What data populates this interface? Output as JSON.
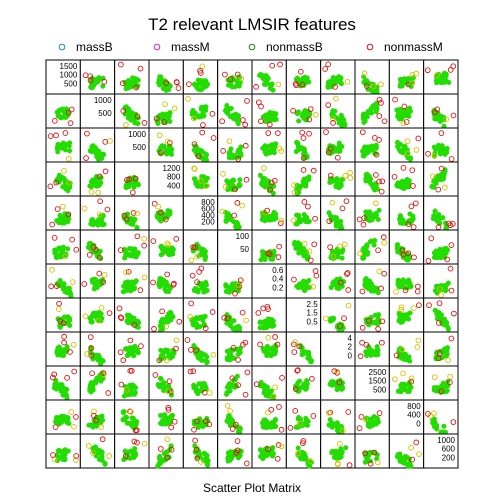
{
  "chart_data": {
    "type": "scatter",
    "title": "T2 relevant LMSIR features",
    "xlabel": "Scatter Plot Matrix",
    "legend": {
      "placement": "top",
      "entries": [
        {
          "name": "massB",
          "color": "#1f8fb4"
        },
        {
          "name": "massM",
          "color": "#d61fd6"
        },
        {
          "name": "nonmassB",
          "color": "#2a7a1a"
        },
        {
          "name": "nonmassM",
          "color": "#e01010"
        }
      ]
    },
    "panel_grid": {
      "rows": 12,
      "cols": 12
    },
    "diagonal_tick_labels": [
      [
        "1500",
        "1000",
        "500"
      ],
      [
        "1000",
        "500"
      ],
      [
        "1000",
        "500"
      ],
      [
        "1200",
        "800",
        "400"
      ],
      [
        "800",
        "600",
        "400",
        "200"
      ],
      [
        "100",
        "50"
      ],
      [
        "0.6",
        "0.4",
        "0.2"
      ],
      [
        "2.5",
        "1.5",
        "0.5"
      ],
      [
        "4",
        "2",
        "0"
      ],
      [
        "2500",
        "1500",
        "500"
      ],
      [
        "800",
        "400",
        "0"
      ],
      [
        "1000",
        "600",
        "200"
      ]
    ],
    "series_colors": {
      "dominant_fill": "#22dd00",
      "outlier_red": "#e01010",
      "outlier_yellow": "#d8c000"
    }
  }
}
